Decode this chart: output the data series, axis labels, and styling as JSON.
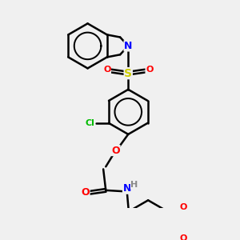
{
  "bg_color": "#f0f0f0",
  "bond_color": "#000000",
  "bond_width": 1.8,
  "atom_colors": {
    "N": "#0000ff",
    "O": "#ff0000",
    "S": "#cccc00",
    "Cl": "#00bb00",
    "H_label": "#888888",
    "C": "#000000"
  },
  "font_size": 8,
  "fig_size": [
    3.0,
    3.0
  ],
  "dpi": 100,
  "scale": 1.0
}
